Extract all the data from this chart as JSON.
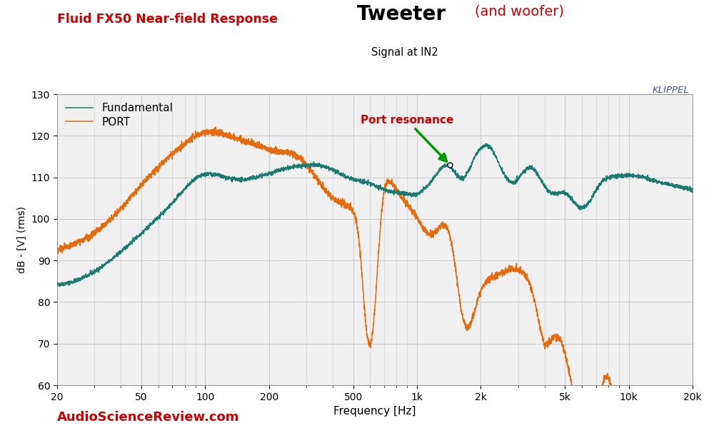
{
  "title_left": "Fluid FX50 Near-field Response",
  "title_tweeter": "Tweeter",
  "title_suffix": "(and woofer)",
  "subtitle": "Signal at IN2",
  "xlabel": "Frequency [Hz]",
  "ylabel": "dB - [V] (rms)",
  "klippel_text": "KLIPPEL",
  "asr_text": "AudioScienceReview.com",
  "annotation_text": "Port resonance",
  "ylim": [
    60,
    130
  ],
  "yticks": [
    60,
    70,
    80,
    90,
    100,
    110,
    120,
    130
  ],
  "fundamental_color": "#1a7a6e",
  "port_color": "#e8690a",
  "annotation_color": "#cc0000",
  "arrow_color": "#009900",
  "title_left_color": "#cc0000",
  "title_suffix_color": "#cc0000",
  "asr_color": "#cc0000",
  "klippel_color": "#4455aa",
  "background_color": "#f0f0f0",
  "grid_color": "#cccccc"
}
